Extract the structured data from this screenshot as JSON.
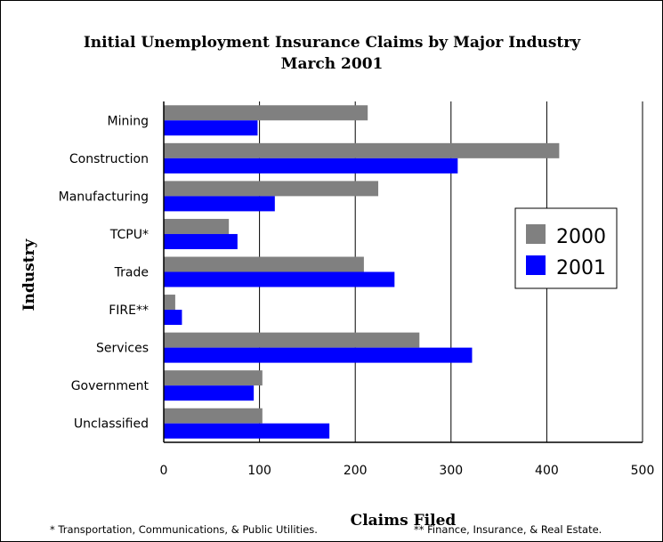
{
  "chart_data": {
    "type": "bar",
    "orientation": "horizontal",
    "title": "Initial Unemployment Insurance Claims by Major Industry",
    "subtitle": "March 2001",
    "xlabel": "Claims Filed",
    "ylabel": "Industry",
    "xlim": [
      0,
      500
    ],
    "x_ticks": [
      0,
      100,
      200,
      300,
      400,
      500
    ],
    "grid": "vertical",
    "legend_position": "right",
    "categories": [
      "Mining",
      "Construction",
      "Manufacturing",
      "TCPU*",
      "Trade",
      "FIRE**",
      "Services",
      "Government",
      "Unclassified"
    ],
    "series": [
      {
        "name": "2000",
        "color": "#808080",
        "values": [
          213,
          413,
          224,
          68,
          209,
          12,
          267,
          103,
          103
        ]
      },
      {
        "name": "2001",
        "color": "#0000ff",
        "values": [
          98,
          307,
          116,
          77,
          241,
          19,
          322,
          94,
          173
        ]
      }
    ],
    "footnotes": [
      "* Transportation, Communications, & Public Utilities.",
      "** Finance, Insurance, & Real Estate."
    ]
  }
}
